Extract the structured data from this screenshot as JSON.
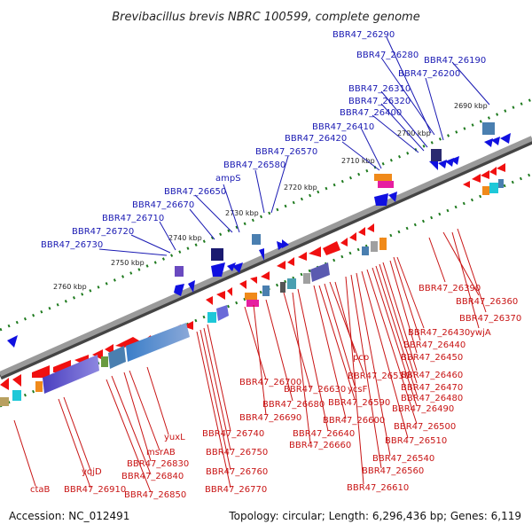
{
  "title": "Brevibacillus brevis NBRC 100599, complete genome",
  "footer": {
    "accession": "Accession: NC_012491",
    "summary": "Topology: circular; Length: 6,296,436 bp; Genes: 6,119"
  },
  "kbp_labels": [
    "2690 kbp",
    "2700 kbp",
    "2710 kbp",
    "2720 kbp",
    "2730 kbp",
    "2740 kbp",
    "2750 kbp",
    "2760 kbp"
  ],
  "blue_labels": [
    "BBR47_26290",
    "BBR47_26280",
    "BBR47_26190",
    "BBR47_26200",
    "BBR47_26310",
    "BBR47_26320",
    "BBR47_26400",
    "BBR47_26410",
    "BBR47_26420",
    "BBR47_26570",
    "BBR47_26580",
    "ampS",
    "BBR47_26650",
    "BBR47_26670",
    "BBR47_26710",
    "BBR47_26720",
    "BBR47_26730"
  ],
  "red_labels": [
    "BBR47_26390",
    "BBR47_26360",
    "BBR47_26370",
    "ywjA",
    "BBR47_26430",
    "BBR47_26440",
    "pcp",
    "BBR47_26450",
    "BBR47_26460",
    "BBR47_26470",
    "BBR47_26530",
    "ycsF",
    "BBR47_26480",
    "BBR47_26700",
    "BBR47_26630",
    "BBR47_26590",
    "BBR47_26490",
    "BBR47_26680",
    "BBR47_26600",
    "BBR47_26690",
    "BBR47_26500",
    "BBR47_26640",
    "BBR47_26510",
    "BBR47_26740",
    "yuxL",
    "BBR47_26660",
    "BBR47_26540",
    "msrAB",
    "BBR47_26750",
    "BBR47_26560",
    "BBR47_26830",
    "yqjD",
    "BBR47_26760",
    "BBR47_26840",
    "BBR47_26610",
    "ctaB",
    "BBR47_26910",
    "BBR47_26770",
    "BBR47_26850"
  ],
  "colors": {
    "backbone": "#808080",
    "plus_strand_gene": "#1010e0",
    "minus_strand_gene": "#f01010",
    "gc_skew_positive": "#1e7a1e",
    "label_blue": "#1a1ab3",
    "label_red": "#c81414"
  }
}
